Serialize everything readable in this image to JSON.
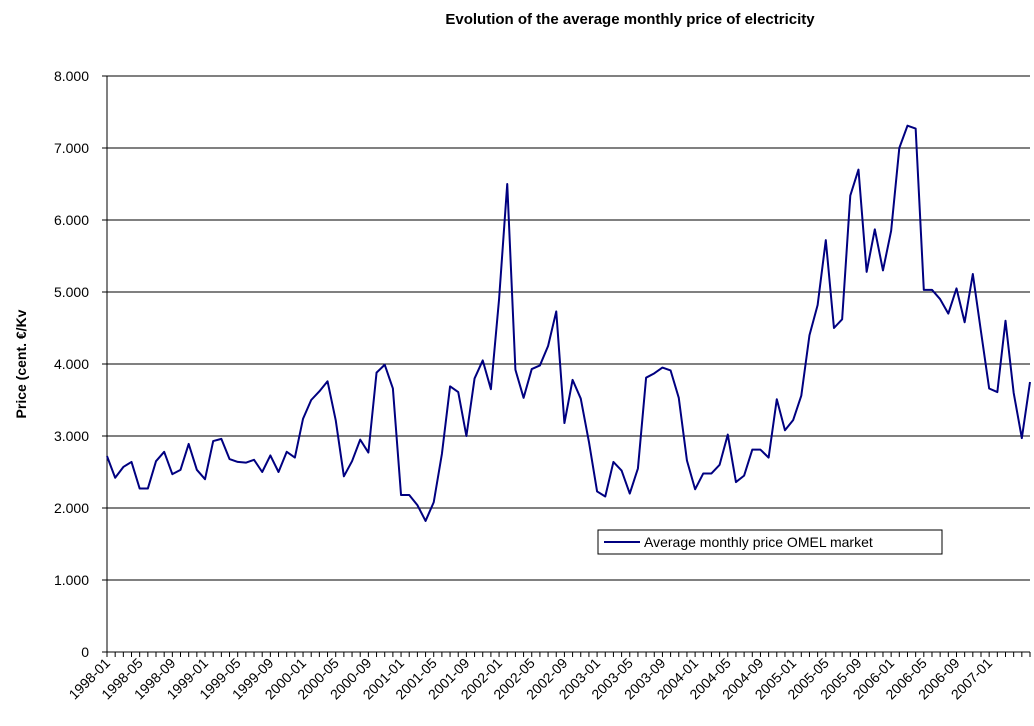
{
  "chart_data": {
    "type": "line",
    "title": "Evolution of the average monthly price of electricity",
    "y_label": "Price (cent. €/Kv",
    "categories": [
      "1998-01",
      null,
      null,
      null,
      "1998-05",
      null,
      null,
      null,
      "1998-09",
      null,
      null,
      null,
      "1999-01",
      null,
      null,
      null,
      "1999-05",
      null,
      null,
      null,
      "1999-09",
      null,
      null,
      null,
      "2000-01",
      null,
      null,
      null,
      "2000-05",
      null,
      null,
      null,
      "2000-09",
      null,
      null,
      null,
      "2001-01",
      null,
      null,
      null,
      "2001-05",
      null,
      null,
      null,
      "2001-09",
      null,
      null,
      null,
      "2002-01",
      null,
      null,
      null,
      "2002-05",
      null,
      null,
      null,
      "2002-09",
      null,
      null,
      null,
      "2003-01",
      null,
      null,
      null,
      "2003-05",
      null,
      null,
      null,
      "2003-09",
      null,
      null,
      null,
      "2004-01",
      null,
      null,
      null,
      "2004-05",
      null,
      null,
      null,
      "2004-09",
      null,
      null,
      null,
      "2005-01",
      null,
      null,
      null,
      "2005-05",
      null,
      null,
      null,
      "2005-09",
      null,
      null,
      null,
      "2006-01",
      null,
      null,
      null,
      "2006-05",
      null,
      null,
      null,
      "2006-09",
      null,
      null,
      null,
      "2007-01",
      null,
      null,
      null,
      null,
      null
    ],
    "series": [
      {
        "name": "Average monthly price OMEL market",
        "color": "#000080",
        "values": [
          2.72,
          2.42,
          2.57,
          2.64,
          2.27,
          2.27,
          2.65,
          2.78,
          2.47,
          2.53,
          2.89,
          2.53,
          2.4,
          2.93,
          2.96,
          2.68,
          2.64,
          2.63,
          2.67,
          2.5,
          2.73,
          2.5,
          2.78,
          2.7,
          3.24,
          3.5,
          3.62,
          3.76,
          3.22,
          2.44,
          2.65,
          2.95,
          2.77,
          3.88,
          3.99,
          3.66,
          2.18,
          2.18,
          2.04,
          1.82,
          2.08,
          2.75,
          3.69,
          3.61,
          3.0,
          3.8,
          4.05,
          3.65,
          4.9,
          6.5,
          3.92,
          3.53,
          3.93,
          3.98,
          4.25,
          4.73,
          3.18,
          3.78,
          3.52,
          2.92,
          2.23,
          2.16,
          2.64,
          2.52,
          2.2,
          2.55,
          3.81,
          3.87,
          3.95,
          3.91,
          3.53,
          2.66,
          2.26,
          2.48,
          2.48,
          2.6,
          3.02,
          2.36,
          2.45,
          2.81,
          2.81,
          2.7,
          3.51,
          3.08,
          3.22,
          3.56,
          4.4,
          4.82,
          5.72,
          4.5,
          4.62,
          6.34,
          6.7,
          5.28,
          5.87,
          5.3,
          5.85,
          7.0,
          7.31,
          7.27,
          5.03,
          5.03,
          4.9,
          4.7,
          5.05,
          4.58,
          5.25,
          4.45,
          3.66,
          3.61,
          4.6,
          3.6,
          2.97,
          3.75
        ]
      }
    ],
    "ylim": [
      0,
      8
    ],
    "yticks": [
      0,
      {
        "value": 1,
        "label": "1.000"
      },
      {
        "value": 2,
        "label": "2.000"
      },
      {
        "value": 3,
        "label": "3.000"
      },
      {
        "value": 4,
        "label": "4.000"
      },
      {
        "value": 5,
        "label": "5.000"
      },
      {
        "value": 6,
        "label": "6.000"
      },
      {
        "value": 7,
        "label": "7.000"
      },
      {
        "value": 8,
        "label": "8.000"
      }
    ],
    "grid": true,
    "legend": "lower right"
  }
}
